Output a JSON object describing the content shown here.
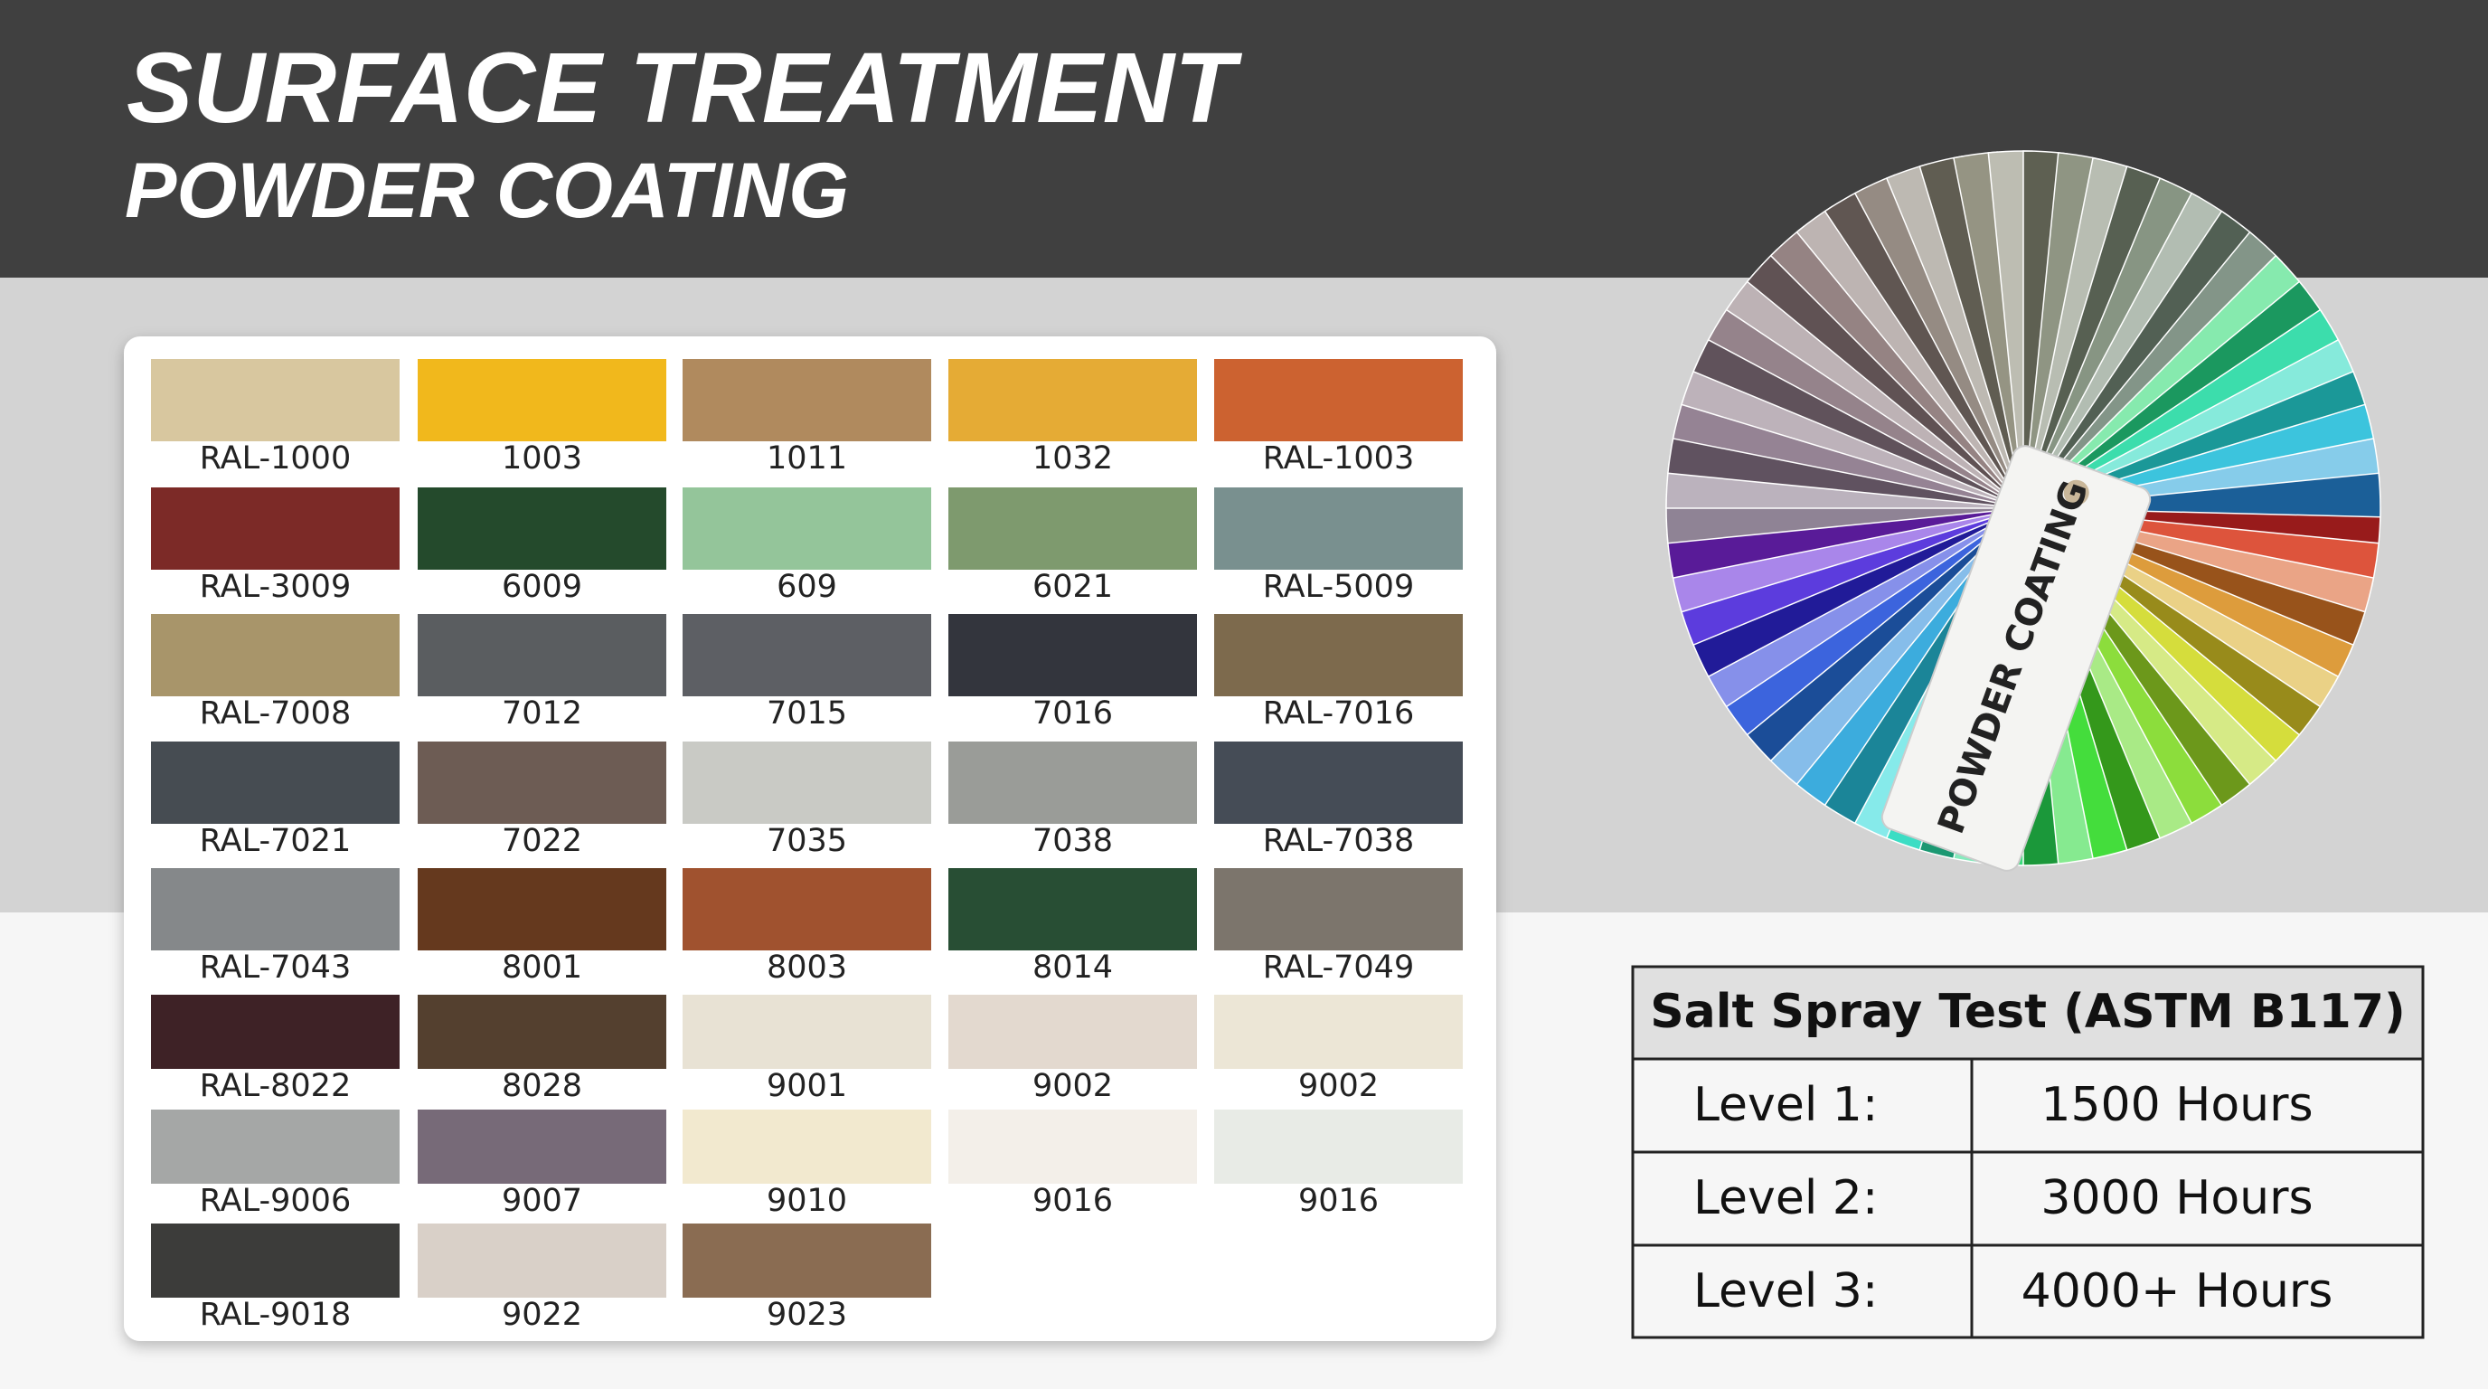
{
  "header": {
    "title": "SURFACE TREATMENT",
    "subtitle": "POWDER COATING"
  },
  "swatches": [
    {
      "label": "RAL-1000",
      "color": "#d8c79f"
    },
    {
      "label": "1003",
      "color": "#f1b81c"
    },
    {
      "label": "1011",
      "color": "#b08a5e"
    },
    {
      "label": "1032",
      "color": "#e5ab35"
    },
    {
      "label": "RAL-1003",
      "color": "#cc6230"
    },
    {
      "label": "RAL-3009",
      "color": "#7c2a27"
    },
    {
      "label": "6009",
      "color": "#244a2c"
    },
    {
      "label": "609",
      "color": "#94c59a"
    },
    {
      "label": "6021",
      "color": "#7e9a6e"
    },
    {
      "label": "RAL-5009",
      "color": "#79908f"
    },
    {
      "label": "RAL-7008",
      "color": "#a8956a"
    },
    {
      "label": "7012",
      "color": "#5a5d60"
    },
    {
      "label": "7015",
      "color": "#5d5f64"
    },
    {
      "label": "7016",
      "color": "#33353d"
    },
    {
      "label": "RAL-7016",
      "color": "#7d6a4d"
    },
    {
      "label": "RAL-7021",
      "color": "#464c52"
    },
    {
      "label": "7022",
      "color": "#6d5c54"
    },
    {
      "label": "7035",
      "color": "#c9cac5"
    },
    {
      "label": "7038",
      "color": "#9a9c98"
    },
    {
      "label": "RAL-7038",
      "color": "#454c56"
    },
    {
      "label": "RAL-7043",
      "color": "#85888a"
    },
    {
      "label": "8001",
      "color": "#65391e"
    },
    {
      "label": "8003",
      "color": "#a0522f"
    },
    {
      "label": "8014",
      "color": "#284e34"
    },
    {
      "label": "RAL-7049",
      "color": "#7c756c"
    },
    {
      "label": "RAL-8022",
      "color": "#3e2226"
    },
    {
      "label": "8028",
      "color": "#54402f"
    },
    {
      "label": "9001",
      "color": "#e8e2d4"
    },
    {
      "label": "9002",
      "color": "#e3d9cf"
    },
    {
      "label": "9002",
      "color": "#ece6d6"
    },
    {
      "label": "RAL-9006",
      "color": "#a5a7a6"
    },
    {
      "label": "9007",
      "color": "#776a78"
    },
    {
      "label": "9010",
      "color": "#f2e9cf"
    },
    {
      "label": "9016",
      "color": "#f3efe9"
    },
    {
      "label": "9016",
      "color": "#e8ebe6"
    },
    {
      "label": "RAL-9018",
      "color": "#3c3c3a"
    },
    {
      "label": "9022",
      "color": "#d9d0c8"
    },
    {
      "label": "9023",
      "color": "#8a6c52"
    }
  ],
  "fan": {
    "card_label": "POWDER COATING"
  },
  "salt_spray_table": {
    "title": "Salt Spray Test (ASTM B117)",
    "rows": [
      [
        "Level 1:",
        "1500 Hours"
      ],
      [
        "Level 2:",
        "3000 Hours"
      ],
      [
        "Level 3:",
        "4000+ Hours"
      ]
    ]
  }
}
